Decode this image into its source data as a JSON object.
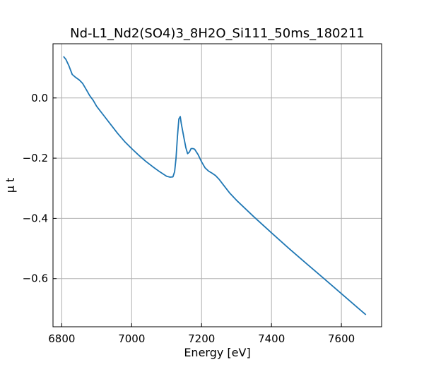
{
  "chart_data": {
    "type": "line",
    "title": "Nd-L1_Nd2(SO4)3_8H2O_Si111_50ms_180211",
    "xlabel": "Energy [eV]",
    "ylabel": "μ t",
    "xlim": [
      6775,
      7715
    ],
    "ylim": [
      -0.76,
      0.18
    ],
    "xticks": [
      6800,
      7000,
      7200,
      7400,
      7600
    ],
    "xtick_labels": [
      "6800",
      "7000",
      "7200",
      "7400",
      "7600"
    ],
    "yticks": [
      0.0,
      -0.2,
      -0.4,
      -0.6
    ],
    "ytick_labels": [
      "0.0",
      "−0.2",
      "−0.4",
      "−0.6"
    ],
    "grid": true,
    "colors": {
      "line": "#1f77b4",
      "grid": "#b0b0b0",
      "axes": "#000000"
    },
    "series": [
      {
        "x": [
          6805,
          6812,
          6820,
          6830,
          6840,
          6850,
          6860,
          6870,
          6880,
          6890,
          6900,
          6920,
          6940,
          6960,
          6980,
          7000,
          7020,
          7040,
          7060,
          7080,
          7100,
          7110,
          7118,
          7123,
          7127,
          7131,
          7135,
          7139,
          7142,
          7146,
          7150,
          7155,
          7160,
          7165,
          7170,
          7175,
          7180,
          7190,
          7200,
          7210,
          7220,
          7230,
          7240,
          7250,
          7260,
          7280,
          7300,
          7350,
          7400,
          7450,
          7500,
          7550,
          7600,
          7650,
          7670
        ],
        "y": [
          0.138,
          0.128,
          0.108,
          0.078,
          0.068,
          0.06,
          0.048,
          0.028,
          0.008,
          -0.008,
          -0.028,
          -0.058,
          -0.088,
          -0.118,
          -0.145,
          -0.168,
          -0.19,
          -0.21,
          -0.228,
          -0.245,
          -0.26,
          -0.263,
          -0.262,
          -0.245,
          -0.2,
          -0.128,
          -0.07,
          -0.062,
          -0.085,
          -0.11,
          -0.135,
          -0.165,
          -0.185,
          -0.18,
          -0.168,
          -0.168,
          -0.17,
          -0.188,
          -0.212,
          -0.232,
          -0.243,
          -0.25,
          -0.258,
          -0.27,
          -0.285,
          -0.315,
          -0.34,
          -0.395,
          -0.448,
          -0.5,
          -0.55,
          -0.6,
          -0.65,
          -0.7,
          -0.72
        ]
      }
    ]
  }
}
